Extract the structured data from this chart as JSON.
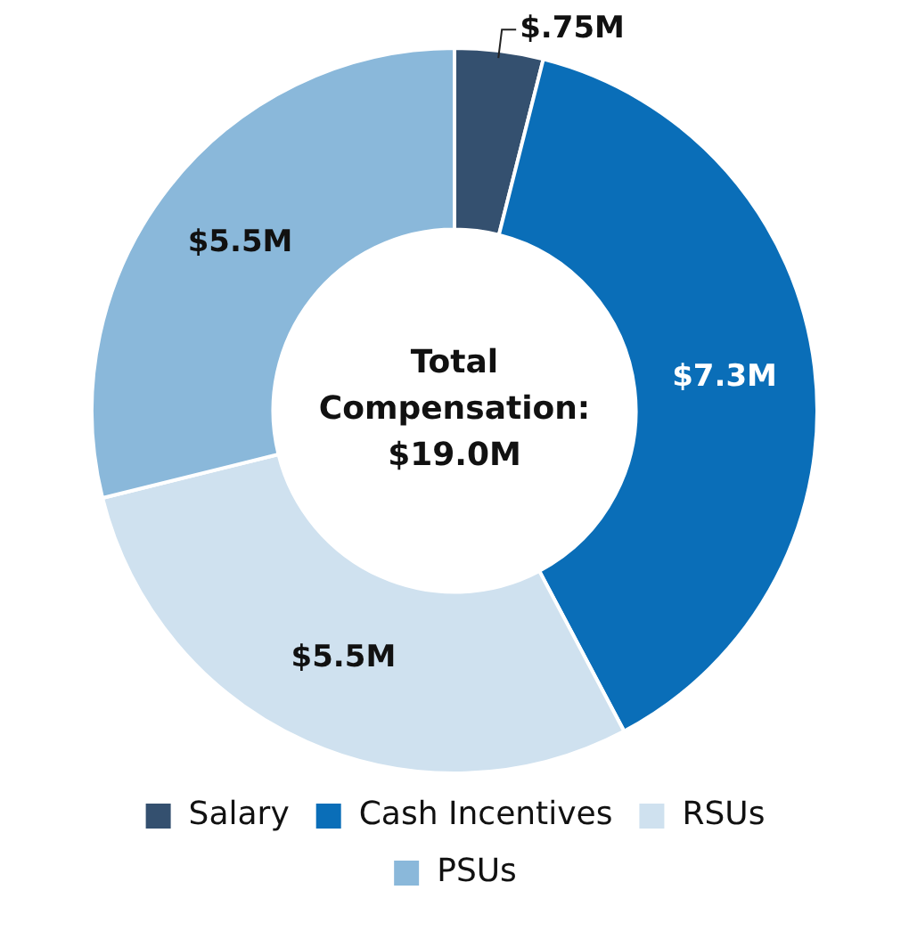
{
  "chart_data": {
    "type": "donut",
    "categories": [
      "Salary",
      "Cash Incentives",
      "RSUs",
      "PSUs"
    ],
    "values": [
      0.75,
      7.3,
      5.5,
      5.5
    ],
    "colors": [
      "#34506f",
      "#0a6eb8",
      "#cfe1ef",
      "#8ab8da"
    ],
    "value_labels": [
      "$.75M",
      "$7.3M",
      "$5.5M",
      "$5.5M"
    ],
    "annotations": [
      "Total Compensation: $19.0M"
    ],
    "legend": "bottom"
  }
}
